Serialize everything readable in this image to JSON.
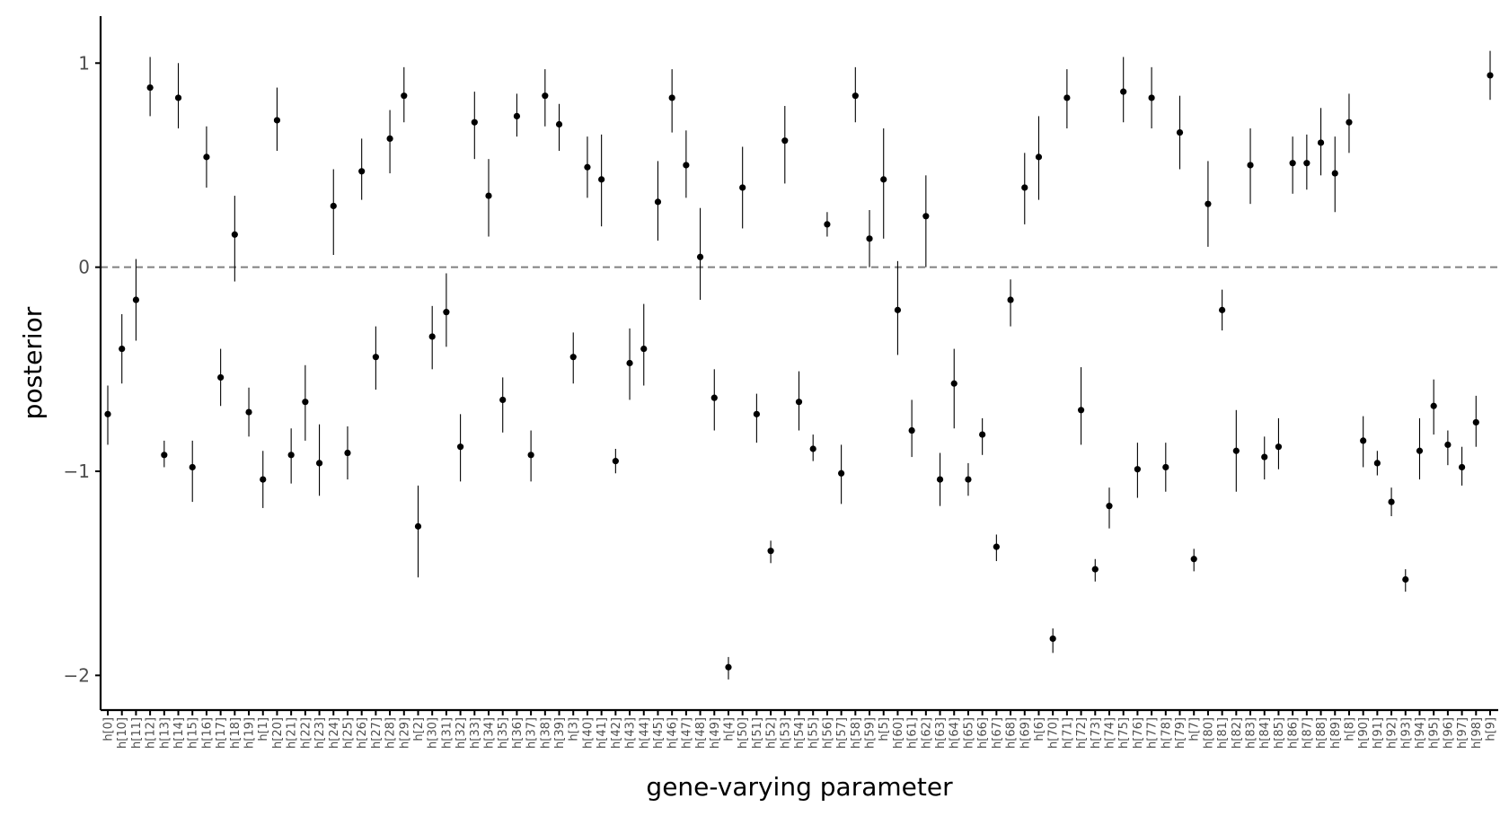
{
  "chart_data": {
    "type": "scatter",
    "subtype": "pointrange",
    "xlabel": "gene-varying parameter",
    "ylabel": "posterior",
    "ylim": [
      -2.17,
      1.23
    ],
    "yticks": [
      -2,
      -1,
      0,
      1
    ],
    "ytick_labels": [
      "−2",
      "−1",
      "0",
      "1"
    ],
    "reference_line": {
      "y": 0,
      "style": "dashed",
      "color": "#808080"
    },
    "grid": false,
    "legend": "none",
    "colors": {
      "point": "#000000",
      "interval": "#000000",
      "axis": "#000000",
      "tick_text": "#4d4d4d"
    },
    "categories": [
      "h[0]",
      "h[10]",
      "h[11]",
      "h[12]",
      "h[13]",
      "h[14]",
      "h[15]",
      "h[16]",
      "h[17]",
      "h[18]",
      "h[19]",
      "h[1]",
      "h[20]",
      "h[21]",
      "h[22]",
      "h[23]",
      "h[24]",
      "h[25]",
      "h[26]",
      "h[27]",
      "h[28]",
      "h[29]",
      "h[2]",
      "h[30]",
      "h[31]",
      "h[32]",
      "h[33]",
      "h[34]",
      "h[35]",
      "h[36]",
      "h[37]",
      "h[38]",
      "h[39]",
      "h[3]",
      "h[40]",
      "h[41]",
      "h[42]",
      "h[43]",
      "h[44]",
      "h[45]",
      "h[46]",
      "h[47]",
      "h[48]",
      "h[49]",
      "h[4]",
      "h[50]",
      "h[51]",
      "h[52]",
      "h[53]",
      "h[54]",
      "h[55]",
      "h[56]",
      "h[57]",
      "h[58]",
      "h[59]",
      "h[5]",
      "h[60]",
      "h[61]",
      "h[62]",
      "h[63]",
      "h[64]",
      "h[65]",
      "h[66]",
      "h[67]",
      "h[68]",
      "h[69]",
      "h[6]",
      "h[70]",
      "h[71]",
      "h[72]",
      "h[73]",
      "h[74]",
      "h[75]",
      "h[76]",
      "h[77]",
      "h[78]",
      "h[79]",
      "h[7]",
      "h[80]",
      "h[81]",
      "h[82]",
      "h[83]",
      "h[84]",
      "h[85]",
      "h[86]",
      "h[87]",
      "h[88]",
      "h[89]",
      "h[8]",
      "h[90]",
      "h[91]",
      "h[92]",
      "h[93]",
      "h[94]",
      "h[95]",
      "h[96]",
      "h[97]",
      "h[98]",
      "h[9]"
    ],
    "series": [
      {
        "values": [
          -0.72,
          -0.4,
          -0.16,
          0.88,
          -0.92,
          0.83,
          -0.98,
          0.54,
          -0.54,
          0.16,
          -0.71,
          -1.04,
          0.72,
          -0.92,
          -0.66,
          -0.96,
          0.3,
          -0.91,
          0.47,
          -0.44,
          0.63,
          0.84,
          -1.27,
          -0.34,
          -0.22,
          -0.88,
          0.71,
          0.35,
          -0.65,
          0.74,
          -0.92,
          0.84,
          0.7,
          -0.44,
          0.49,
          0.43,
          -0.95,
          -0.47,
          -0.4,
          0.32,
          0.83,
          0.5,
          0.05,
          -0.64,
          -1.96,
          0.39,
          -0.72,
          -1.39,
          0.62,
          -0.66,
          -0.89,
          0.21,
          -1.01,
          0.84,
          0.14,
          0.43,
          -0.21,
          -0.8,
          0.25,
          -1.04,
          -0.57,
          -1.04,
          -0.82,
          -1.37,
          -0.16,
          0.39,
          0.54,
          -1.82,
          0.83,
          -0.7,
          -1.48,
          -1.17,
          0.86,
          -0.99,
          0.83,
          -0.98,
          0.66,
          -1.43,
          0.31,
          -0.21,
          -0.9,
          0.5,
          -0.93,
          -0.88,
          0.51,
          0.51,
          0.61,
          0.46,
          0.71,
          -0.85,
          -0.96,
          -1.15,
          -1.53,
          -0.9,
          -0.68,
          -0.87,
          -0.98,
          -0.76,
          0.94
        ],
        "lower": [
          -0.87,
          -0.57,
          -0.36,
          0.74,
          -0.98,
          0.68,
          -1.15,
          0.39,
          -0.68,
          -0.07,
          -0.83,
          -1.18,
          0.57,
          -1.06,
          -0.85,
          -1.12,
          0.06,
          -1.04,
          0.33,
          -0.6,
          0.46,
          0.71,
          -1.52,
          -0.5,
          -0.39,
          -1.05,
          0.53,
          0.15,
          -0.81,
          0.64,
          -1.05,
          0.69,
          0.57,
          -0.57,
          0.34,
          0.2,
          -1.01,
          -0.65,
          -0.58,
          0.13,
          0.66,
          0.34,
          -0.16,
          -0.8,
          -2.02,
          0.19,
          -0.86,
          -1.45,
          0.41,
          -0.8,
          -0.95,
          0.15,
          -1.16,
          0.71,
          0.0,
          0.14,
          -0.43,
          -0.93,
          0.0,
          -1.17,
          -0.79,
          -1.12,
          -0.92,
          -1.44,
          -0.29,
          0.21,
          0.33,
          -1.89,
          0.68,
          -0.87,
          -1.54,
          -1.28,
          0.71,
          -1.13,
          0.68,
          -1.1,
          0.48,
          -1.49,
          0.1,
          -0.31,
          -1.1,
          0.31,
          -1.04,
          -0.99,
          0.36,
          0.38,
          0.45,
          0.27,
          0.56,
          -0.98,
          -1.02,
          -1.22,
          -1.59,
          -1.04,
          -0.82,
          -0.97,
          -1.07,
          -0.88,
          0.82
        ],
        "upper": [
          -0.58,
          -0.23,
          0.04,
          1.03,
          -0.85,
          1.0,
          -0.85,
          0.69,
          -0.4,
          0.35,
          -0.59,
          -0.9,
          0.88,
          -0.79,
          -0.48,
          -0.77,
          0.48,
          -0.78,
          0.63,
          -0.29,
          0.77,
          0.98,
          -1.07,
          -0.19,
          -0.03,
          -0.72,
          0.86,
          0.53,
          -0.54,
          0.85,
          -0.8,
          0.97,
          0.8,
          -0.32,
          0.64,
          0.65,
          -0.89,
          -0.3,
          -0.18,
          0.52,
          0.97,
          0.67,
          0.29,
          -0.5,
          -1.91,
          0.59,
          -0.62,
          -1.34,
          0.79,
          -0.51,
          -0.82,
          0.27,
          -0.87,
          0.98,
          0.28,
          0.68,
          0.03,
          -0.65,
          0.45,
          -0.91,
          -0.4,
          -0.96,
          -0.74,
          -1.31,
          -0.06,
          0.56,
          0.74,
          -1.77,
          0.97,
          -0.49,
          -1.43,
          -1.08,
          1.03,
          -0.86,
          0.98,
          -0.86,
          0.84,
          -1.38,
          0.52,
          -0.11,
          -0.7,
          0.68,
          -0.83,
          -0.74,
          0.64,
          0.65,
          0.78,
          0.64,
          0.85,
          -0.73,
          -0.9,
          -1.08,
          -1.48,
          -0.74,
          -0.55,
          -0.8,
          -0.88,
          -0.63,
          1.06
        ]
      }
    ]
  }
}
